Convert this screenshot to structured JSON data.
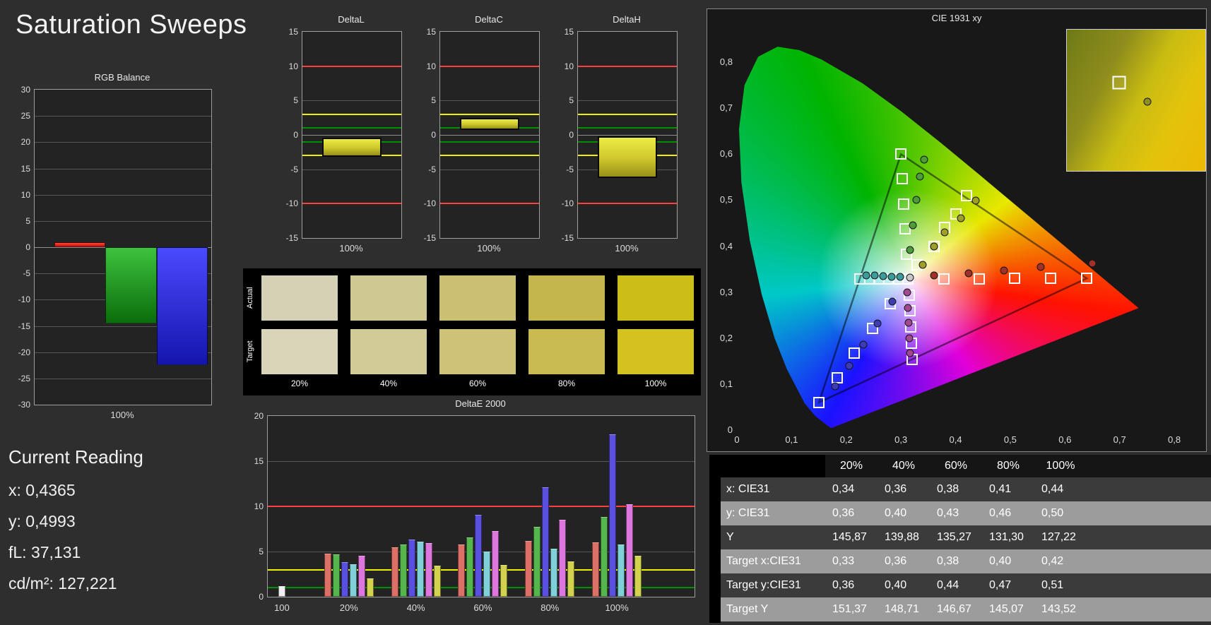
{
  "page": {
    "title": "Saturation Sweeps",
    "background": "#2e2e2e"
  },
  "current_reading": {
    "heading": "Current Reading",
    "lines": [
      {
        "label": "x:",
        "value": "0,4365"
      },
      {
        "label": "y:",
        "value": "0,4993"
      },
      {
        "label": "fL:",
        "value": "37,131"
      },
      {
        "label": "cd/m²:",
        "value": "127,221"
      }
    ]
  },
  "chart_data": [
    {
      "id": "rgb_balance",
      "type": "bar",
      "title": "RGB Balance",
      "categories": [
        "Red",
        "Green",
        "Blue"
      ],
      "values": [
        1.0,
        -14.5,
        -22.5
      ],
      "bar_colors": [
        [
          "#ff4838",
          "#bf0d0d"
        ],
        [
          "#3ec23e",
          "#0b6d0b"
        ],
        [
          "#4a4aff",
          "#1515ad"
        ]
      ],
      "xlabel": "100%",
      "ylim": [
        -30,
        30
      ],
      "ytick_step": 5
    },
    {
      "id": "delta_l",
      "type": "bar",
      "title": "DeltaL",
      "xlabel": "100%",
      "ylim": [
        -15,
        15
      ],
      "ytick_step": 5,
      "bar_range": [
        -3.2,
        -0.4
      ],
      "ref_lines": [
        {
          "value": 10,
          "color": "#ff4040"
        },
        {
          "value": -10,
          "color": "#ff4040"
        },
        {
          "value": 3,
          "color": "#f0f000"
        },
        {
          "value": -3,
          "color": "#f0f000"
        },
        {
          "value": 1,
          "color": "#009000"
        },
        {
          "value": -1,
          "color": "#009000"
        }
      ]
    },
    {
      "id": "delta_c",
      "type": "bar",
      "title": "DeltaC",
      "xlabel": "100%",
      "ylim": [
        -15,
        15
      ],
      "ytick_step": 5,
      "bar_range": [
        0.7,
        2.5
      ],
      "ref_lines": [
        {
          "value": 10,
          "color": "#ff4040"
        },
        {
          "value": -10,
          "color": "#ff4040"
        },
        {
          "value": 3,
          "color": "#f0f000"
        },
        {
          "value": -3,
          "color": "#f0f000"
        },
        {
          "value": 1,
          "color": "#009000"
        },
        {
          "value": -1,
          "color": "#009000"
        }
      ]
    },
    {
      "id": "delta_h",
      "type": "bar",
      "title": "DeltaH",
      "xlabel": "100%",
      "ylim": [
        -15,
        15
      ],
      "ytick_step": 5,
      "bar_range": [
        -6.3,
        -0.2
      ],
      "ref_lines": [
        {
          "value": 10,
          "color": "#ff4040"
        },
        {
          "value": -10,
          "color": "#ff4040"
        },
        {
          "value": 3,
          "color": "#f0f000"
        },
        {
          "value": -3,
          "color": "#f0f000"
        },
        {
          "value": 1,
          "color": "#009000"
        },
        {
          "value": -1,
          "color": "#009000"
        }
      ]
    },
    {
      "id": "saturation_swatches",
      "type": "table",
      "row_labels": [
        "Actual",
        "Target"
      ],
      "columns": [
        "20%",
        "40%",
        "60%",
        "80%",
        "100%"
      ],
      "actual_colors": [
        "#d5d1b5",
        "#d0c893",
        "#cbbf72",
        "#c5b54d",
        "#cdbd17"
      ],
      "target_colors": [
        "#d9d5b9",
        "#d3cb97",
        "#cec278",
        "#c9ba52",
        "#d3c21f"
      ]
    },
    {
      "id": "delta_e_2000",
      "type": "bar",
      "title": "DeltaE 2000",
      "ylim": [
        0,
        20
      ],
      "ytick_step": 5,
      "ref_lines": [
        {
          "value": 10,
          "color": "#ff4040"
        },
        {
          "value": 3,
          "color": "#f0f000"
        },
        {
          "value": 1,
          "color": "#009000"
        }
      ],
      "palette": [
        "#dd7066",
        "#55b64e",
        "#5a50e0",
        "#7fd0d8",
        "#dd76dd",
        "#d2d24e"
      ],
      "groups": [
        {
          "label": "100",
          "values": [
            1.2
          ],
          "palette": [
            "#f0f0f0"
          ]
        },
        {
          "label": "20%",
          "values": [
            4.8,
            4.7,
            3.8,
            3.6,
            4.5,
            2.0
          ]
        },
        {
          "label": "40%",
          "values": [
            5.5,
            5.8,
            6.3,
            6.1,
            5.9,
            3.4
          ]
        },
        {
          "label": "60%",
          "values": [
            5.8,
            6.6,
            9.1,
            5.0,
            7.3,
            3.5
          ]
        },
        {
          "label": "80%",
          "values": [
            6.2,
            7.7,
            12.1,
            5.3,
            8.5,
            3.9
          ]
        },
        {
          "label": "100%",
          "values": [
            6.0,
            8.8,
            18.0,
            5.8,
            10.2,
            4.5
          ]
        }
      ]
    },
    {
      "id": "cie_1931_xy",
      "type": "scatter",
      "title": "CIE 1931 xy",
      "xlim": [
        0,
        0.8
      ],
      "ylim": [
        0,
        0.8
      ],
      "xtick_labels": [
        "0",
        "0,1",
        "0,2",
        "0,3",
        "0,4",
        "0,5",
        "0,6",
        "0,7",
        "0,8"
      ],
      "ytick_labels": [
        "0",
        "0,1",
        "0,2",
        "0,3",
        "0,4",
        "0,5",
        "0,6",
        "0,7",
        "0,8"
      ],
      "white_point": [
        0.3127,
        0.329
      ],
      "gamut_triangle": [
        [
          0.64,
          0.33
        ],
        [
          0.3,
          0.6
        ],
        [
          0.15,
          0.06
        ]
      ],
      "targets": [
        [
          0.313,
          0.329
        ],
        [
          0.378,
          0.329
        ],
        [
          0.443,
          0.329
        ],
        [
          0.508,
          0.33
        ],
        [
          0.574,
          0.33
        ],
        [
          0.64,
          0.33
        ],
        [
          0.31,
          0.383
        ],
        [
          0.307,
          0.437
        ],
        [
          0.305,
          0.492
        ],
        [
          0.302,
          0.546
        ],
        [
          0.3,
          0.6
        ],
        [
          0.28,
          0.275
        ],
        [
          0.248,
          0.221
        ],
        [
          0.215,
          0.167
        ],
        [
          0.183,
          0.114
        ],
        [
          0.15,
          0.06
        ],
        [
          0.295,
          0.329
        ],
        [
          0.278,
          0.329
        ],
        [
          0.26,
          0.329
        ],
        [
          0.243,
          0.329
        ],
        [
          0.225,
          0.329
        ],
        [
          0.315,
          0.294
        ],
        [
          0.316,
          0.259
        ],
        [
          0.318,
          0.224
        ],
        [
          0.319,
          0.189
        ],
        [
          0.321,
          0.154
        ],
        [
          0.33,
          0.36
        ],
        [
          0.36,
          0.4
        ],
        [
          0.38,
          0.44
        ],
        [
          0.4,
          0.47
        ],
        [
          0.42,
          0.51
        ]
      ],
      "measurements": [
        {
          "x": 0.316,
          "y": 0.332,
          "color": "#c8c8c8"
        },
        {
          "x": 0.36,
          "y": 0.336,
          "color": "#a03028"
        },
        {
          "x": 0.424,
          "y": 0.341,
          "color": "#a03028"
        },
        {
          "x": 0.489,
          "y": 0.347,
          "color": "#a03028"
        },
        {
          "x": 0.556,
          "y": 0.354,
          "color": "#a03028"
        },
        {
          "x": 0.65,
          "y": 0.363,
          "color": "#a03028"
        },
        {
          "x": 0.317,
          "y": 0.392,
          "color": "#4d9c3c"
        },
        {
          "x": 0.322,
          "y": 0.446,
          "color": "#4d9c3c"
        },
        {
          "x": 0.328,
          "y": 0.5,
          "color": "#4d9c3c"
        },
        {
          "x": 0.335,
          "y": 0.552,
          "color": "#4d9c3c"
        },
        {
          "x": 0.343,
          "y": 0.588,
          "color": "#4d9c3c"
        },
        {
          "x": 0.284,
          "y": 0.28,
          "color": "#3c3cb4"
        },
        {
          "x": 0.257,
          "y": 0.232,
          "color": "#3c3cb4"
        },
        {
          "x": 0.231,
          "y": 0.186,
          "color": "#3c3cb4"
        },
        {
          "x": 0.205,
          "y": 0.139,
          "color": "#3c3cb4"
        },
        {
          "x": 0.18,
          "y": 0.095,
          "color": "#3c3cb4"
        },
        {
          "x": 0.298,
          "y": 0.333,
          "color": "#3c9c9c"
        },
        {
          "x": 0.283,
          "y": 0.334,
          "color": "#3c9c9c"
        },
        {
          "x": 0.268,
          "y": 0.335,
          "color": "#3c9c9c"
        },
        {
          "x": 0.252,
          "y": 0.336,
          "color": "#3c9c9c"
        },
        {
          "x": 0.237,
          "y": 0.337,
          "color": "#3c9c9c"
        },
        {
          "x": 0.312,
          "y": 0.299,
          "color": "#a04890"
        },
        {
          "x": 0.313,
          "y": 0.266,
          "color": "#a04890"
        },
        {
          "x": 0.314,
          "y": 0.233,
          "color": "#a04890"
        },
        {
          "x": 0.315,
          "y": 0.2,
          "color": "#a04890"
        },
        {
          "x": 0.317,
          "y": 0.168,
          "color": "#a04890"
        },
        {
          "x": 0.34,
          "y": 0.36,
          "color": "#a0a028"
        },
        {
          "x": 0.36,
          "y": 0.4,
          "color": "#a0a028"
        },
        {
          "x": 0.38,
          "y": 0.43,
          "color": "#a0a028"
        },
        {
          "x": 0.41,
          "y": 0.46,
          "color": "#a0a028"
        },
        {
          "x": 0.4365,
          "y": 0.4993,
          "color": "#a0a028"
        }
      ],
      "inset": {
        "x_range": [
          0.39,
          0.47
        ],
        "y_range": [
          0.46,
          0.54
        ],
        "target": [
          0.42,
          0.51
        ],
        "measured": [
          0.4365,
          0.4993
        ],
        "measured_color": "#8f8f25"
      }
    },
    {
      "id": "results_table",
      "type": "table",
      "columns": [
        "20%",
        "40%",
        "60%",
        "80%",
        "100%"
      ],
      "rows": [
        {
          "label": "x: CIE31",
          "values": [
            "0,34",
            "0,36",
            "0,38",
            "0,41",
            "0,44"
          ]
        },
        {
          "label": "y: CIE31",
          "values": [
            "0,36",
            "0,40",
            "0,43",
            "0,46",
            "0,50"
          ]
        },
        {
          "label": "Y",
          "values": [
            "145,87",
            "139,88",
            "135,27",
            "131,30",
            "127,22"
          ]
        },
        {
          "label": "Target x:CIE31",
          "values": [
            "0,33",
            "0,36",
            "0,38",
            "0,40",
            "0,42"
          ]
        },
        {
          "label": "Target y:CIE31",
          "values": [
            "0,36",
            "0,40",
            "0,44",
            "0,47",
            "0,51"
          ]
        },
        {
          "label": "Target Y",
          "values": [
            "151,37",
            "148,71",
            "146,67",
            "145,07",
            "143,52"
          ]
        }
      ],
      "row_colors": {
        "dark": "#3b3b3b",
        "light": "#9c9c9c",
        "header": "#151515"
      }
    }
  ]
}
